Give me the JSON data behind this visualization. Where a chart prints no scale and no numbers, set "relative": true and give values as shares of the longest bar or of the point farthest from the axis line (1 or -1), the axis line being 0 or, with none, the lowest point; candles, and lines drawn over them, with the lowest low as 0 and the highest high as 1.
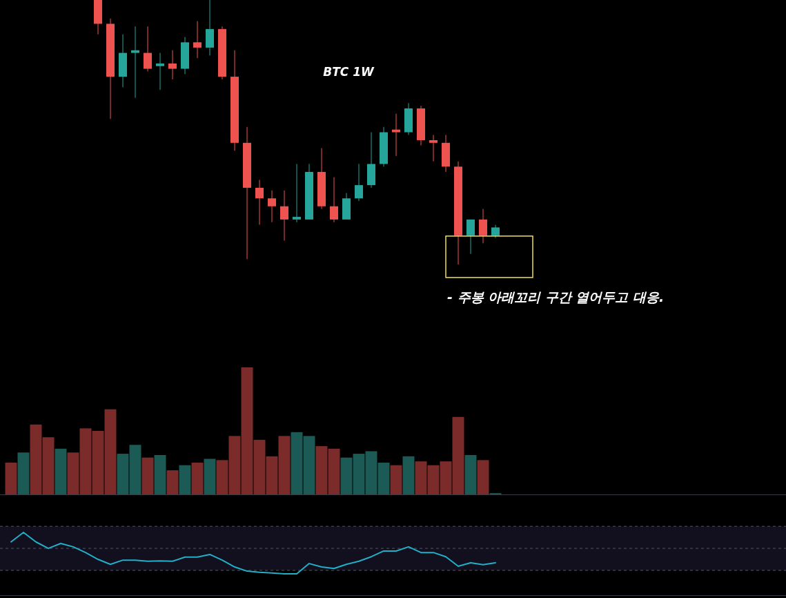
{
  "chart_data": [
    {
      "type": "candlestick",
      "title": "BTC 1W",
      "relative": true,
      "categories": [
        null,
        null,
        null,
        null,
        null,
        null,
        null,
        null,
        null,
        null,
        null,
        null,
        null,
        null,
        null,
        null,
        null,
        null,
        null,
        null,
        null,
        null,
        null,
        null,
        null,
        null,
        null,
        null,
        null,
        null,
        null,
        null,
        null,
        null,
        null,
        null,
        null,
        null,
        null,
        null
      ],
      "ohlc": [
        null,
        null,
        null,
        null,
        null,
        null,
        null,
        [
          1.0,
          1.0,
          0.87,
          0.91
        ],
        [
          0.91,
          0.93,
          0.55,
          0.71
        ],
        [
          0.71,
          0.87,
          0.67,
          0.8
        ],
        [
          0.8,
          0.9,
          0.63,
          0.81
        ],
        [
          0.8,
          0.9,
          0.73,
          0.74
        ],
        [
          0.75,
          0.8,
          0.66,
          0.76
        ],
        [
          0.76,
          0.81,
          0.7,
          0.74
        ],
        [
          0.74,
          0.86,
          0.72,
          0.84
        ],
        [
          0.84,
          0.92,
          0.78,
          0.82
        ],
        [
          0.82,
          1.0,
          0.79,
          0.89
        ],
        [
          0.89,
          0.9,
          0.7,
          0.71
        ],
        [
          0.71,
          0.81,
          0.43,
          0.46
        ],
        [
          0.46,
          0.52,
          0.02,
          0.29
        ],
        [
          0.29,
          0.32,
          0.15,
          0.25
        ],
        [
          0.25,
          0.28,
          0.16,
          0.22
        ],
        [
          0.22,
          0.28,
          0.09,
          0.17
        ],
        [
          0.17,
          0.38,
          0.16,
          0.18
        ],
        [
          0.17,
          0.38,
          0.17,
          0.35
        ],
        [
          0.35,
          0.44,
          0.21,
          0.22
        ],
        [
          0.22,
          0.33,
          0.16,
          0.17
        ],
        [
          0.17,
          0.27,
          0.17,
          0.25
        ],
        [
          0.25,
          0.38,
          0.24,
          0.3
        ],
        [
          0.3,
          0.5,
          0.29,
          0.38
        ],
        [
          0.38,
          0.52,
          0.37,
          0.5
        ],
        [
          0.51,
          0.57,
          0.41,
          0.5
        ],
        [
          0.5,
          0.61,
          0.49,
          0.59
        ],
        [
          0.59,
          0.6,
          0.45,
          0.47
        ],
        [
          0.47,
          0.49,
          0.39,
          0.46
        ],
        [
          0.46,
          0.49,
          0.35,
          0.37
        ],
        [
          0.37,
          0.39,
          0.0,
          0.11
        ],
        [
          0.11,
          0.17,
          0.04,
          0.17
        ],
        [
          0.17,
          0.21,
          0.08,
          0.11
        ],
        [
          0.11,
          0.15,
          0.1,
          0.14
        ]
      ],
      "colors": [
        null,
        null,
        null,
        null,
        null,
        null,
        null,
        "#ef5350",
        "#ef5350",
        "#26a69a",
        "#26a69a",
        "#ef5350",
        "#26a69a",
        "#ef5350",
        "#26a69a",
        "#ef5350",
        "#26a69a",
        "#ef5350",
        "#ef5350",
        "#ef5350",
        "#ef5350",
        "#ef5350",
        "#ef5350",
        "#26a69a",
        "#26a69a",
        "#ef5350",
        "#ef5350",
        "#26a69a",
        "#26a69a",
        "#26a69a",
        "#26a69a",
        "#ef5350",
        "#26a69a",
        "#ef5350",
        "#ef5350",
        "#ef5350",
        "#ef5350",
        "#26a69a",
        "#ef5350",
        "#26a69a"
      ],
      "annotations": [
        "- 주봉 아래꼬리 구간 열어두고 대응."
      ]
    },
    {
      "type": "bar",
      "relative": true,
      "categories": [
        null,
        null,
        null,
        null,
        null,
        null,
        null,
        null,
        null,
        null,
        null,
        null,
        null,
        null,
        null,
        null,
        null,
        null,
        null,
        null,
        null,
        null,
        null,
        null,
        null,
        null,
        null,
        null,
        null,
        null,
        null,
        null,
        null,
        null,
        null,
        null,
        null,
        null,
        null,
        null
      ],
      "values": [
        0.25,
        0.33,
        0.55,
        0.45,
        0.36,
        0.33,
        0.52,
        0.5,
        0.67,
        0.32,
        0.39,
        0.29,
        0.31,
        0.19,
        0.23,
        0.25,
        0.28,
        0.27,
        0.46,
        1.0,
        0.43,
        0.3,
        0.46,
        0.49,
        0.46,
        0.38,
        0.36,
        0.29,
        0.32,
        0.34,
        0.25,
        0.23,
        0.3,
        0.26,
        0.23,
        0.26,
        0.61,
        0.31,
        0.27,
        0.01
      ],
      "colors": [
        "#7c2b2b",
        "#1b5a55",
        "#7c2b2b",
        "#7c2b2b",
        "#1b5a55",
        "#7c2b2b",
        "#7c2b2b",
        "#7c2b2b",
        "#7c2b2b",
        "#1b5a55",
        "#1b5a55",
        "#7c2b2b",
        "#1b5a55",
        "#7c2b2b",
        "#1b5a55",
        "#7c2b2b",
        "#1b5a55",
        "#7c2b2b",
        "#7c2b2b",
        "#7c2b2b",
        "#7c2b2b",
        "#7c2b2b",
        "#7c2b2b",
        "#1b5a55",
        "#1b5a55",
        "#7c2b2b",
        "#7c2b2b",
        "#1b5a55",
        "#1b5a55",
        "#1b5a55",
        "#1b5a55",
        "#7c2b2b",
        "#1b5a55",
        "#7c2b2b",
        "#7c2b2b",
        "#7c2b2b",
        "#7c2b2b",
        "#1b5a55",
        "#7c2b2b",
        "#1b5a55"
      ]
    },
    {
      "type": "line",
      "relative": true,
      "categories": [
        null,
        null,
        null,
        null,
        null,
        null,
        null,
        null,
        null,
        null,
        null,
        null,
        null,
        null,
        null,
        null,
        null,
        null,
        null,
        null,
        null,
        null,
        null,
        null,
        null,
        null,
        null,
        null,
        null,
        null,
        null,
        null,
        null,
        null,
        null,
        null,
        null,
        null,
        null,
        null
      ],
      "series": [
        {
          "color": "#22b0c8",
          "values": [
            0.75,
            1.0,
            0.75,
            0.58,
            0.71,
            0.62,
            0.47,
            0.29,
            0.16,
            0.27,
            0.27,
            0.24,
            0.25,
            0.24,
            0.35,
            0.35,
            0.42,
            0.27,
            0.09,
            -0.02,
            -0.05,
            -0.07,
            -0.09,
            -0.09,
            0.18,
            0.09,
            0.05,
            0.16,
            0.24,
            0.36,
            0.51,
            0.51,
            0.62,
            0.47,
            0.47,
            0.36,
            0.11,
            0.2,
            0.15,
            0.2
          ]
        }
      ],
      "ref_lines": [
        {
          "axis": "y",
          "value": 1.16,
          "color": "#555566",
          "line_style": "dashed"
        },
        {
          "axis": "y",
          "value": 0.58,
          "color": "#555566",
          "line_style": "dashed"
        },
        {
          "axis": "y",
          "value": 0,
          "color": "#555566",
          "line_style": "dashed"
        }
      ],
      "bands": [
        {
          "axis": "y",
          "from": 0,
          "to": 1.16,
          "color": "#120f1e"
        }
      ]
    }
  ]
}
